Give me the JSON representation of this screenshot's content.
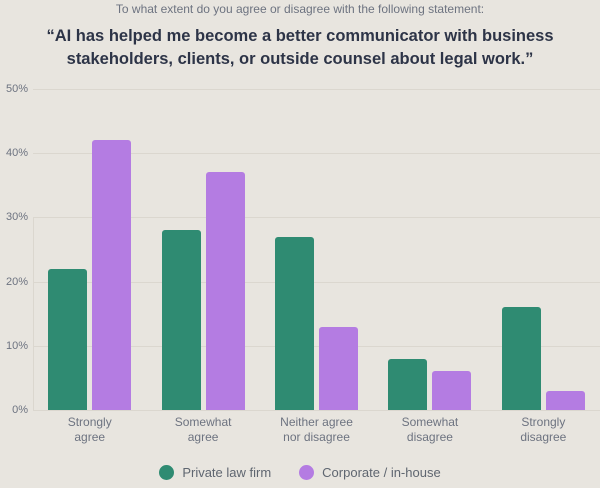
{
  "header": {
    "subtitle": "To what extent do you agree or disagree with the following statement:",
    "title": "“AI has helped me become a better communicator with business stakeholders, clients, or outside counsel about legal work.”"
  },
  "chart_data": {
    "type": "bar",
    "categories": [
      "Strongly\nagree",
      "Somewhat\nagree",
      "Neither agree\nnor disagree",
      "Somewhat\ndisagree",
      "Strongly\ndisagree"
    ],
    "series": [
      {
        "name": "Private law firm",
        "color": "#2f8b72",
        "values": [
          22,
          28,
          27,
          8,
          16
        ]
      },
      {
        "name": "Corporate / in-house",
        "color": "#b47ce2",
        "values": [
          42,
          37,
          13,
          6,
          3
        ]
      }
    ],
    "title": "",
    "xlabel": "",
    "ylabel": "",
    "ylim": [
      0,
      50
    ],
    "yticks": [
      0,
      10,
      20,
      30,
      40,
      50
    ],
    "ytick_format": "{v}%",
    "grid": true,
    "legend_position": "bottom"
  },
  "colors": {
    "background": "#e8e5df",
    "gridline": "#dbd7cf",
    "title_text": "#2d3447",
    "muted_text": "#6d7380",
    "legend_text": "#5f6670"
  }
}
